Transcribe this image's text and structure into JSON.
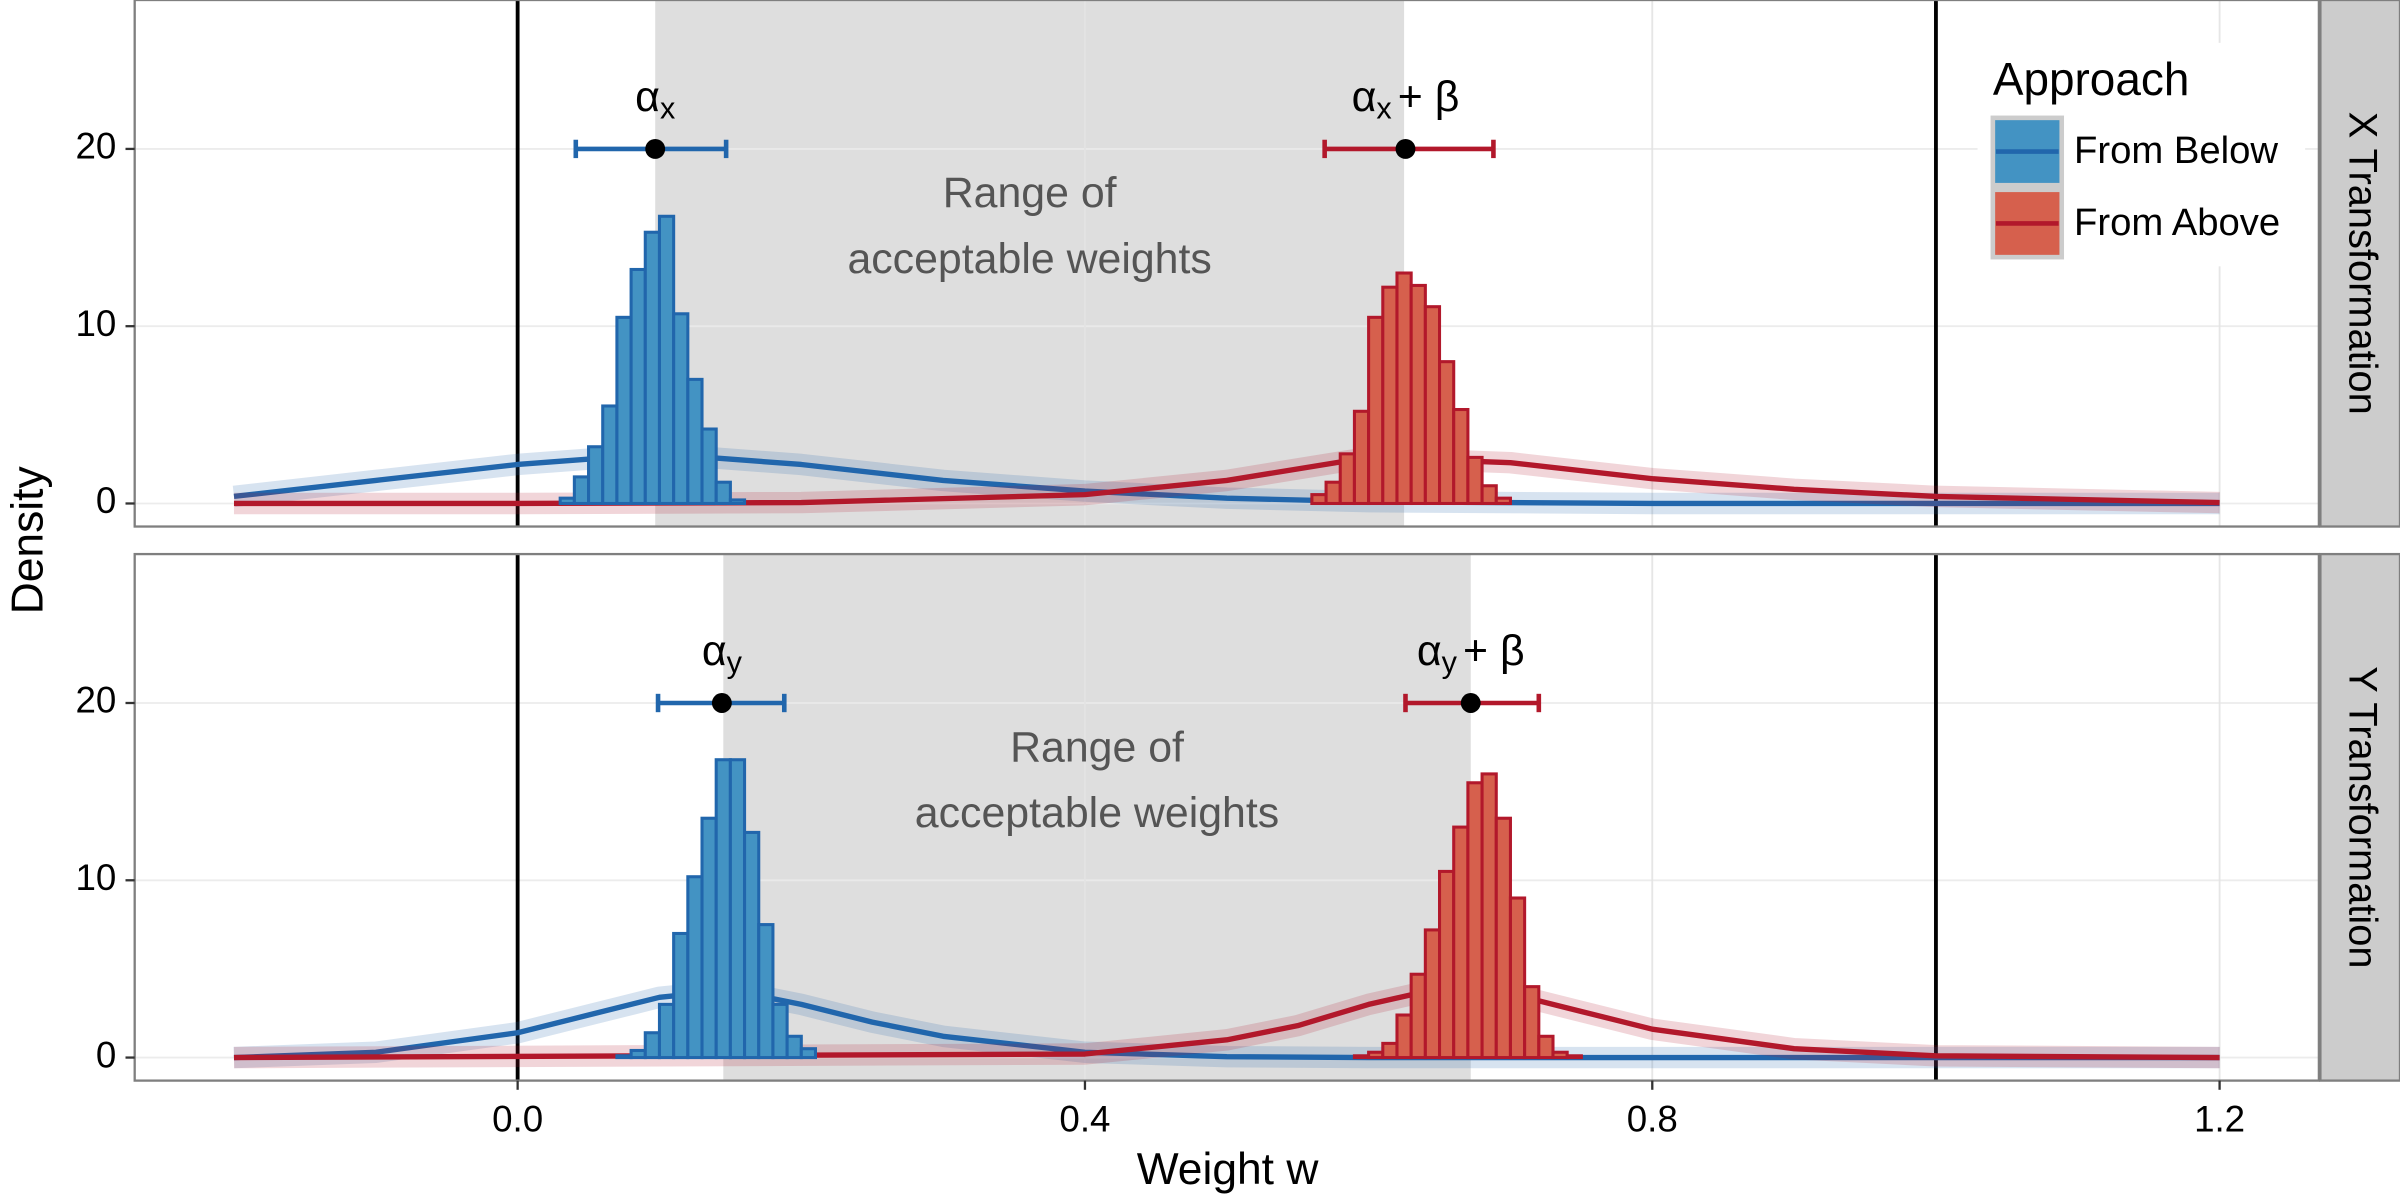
{
  "chart_data": {
    "type": "histogram",
    "x_label": "Weight w",
    "y_label": "Density",
    "legend_title": "Approach",
    "xlim": [
      -0.27,
      1.27
    ],
    "xticks": [
      {
        "value": 0,
        "label": "0.0"
      },
      0.4,
      0.8,
      1.2
    ],
    "ylim": [
      -1.3,
      28.4
    ],
    "yticks": [
      0,
      10,
      20
    ],
    "grid": true,
    "vlines": [
      0,
      1
    ],
    "series": [
      {
        "name": "From Below",
        "color": "#2166ac",
        "fill": "#4393c3"
      },
      {
        "name": "From Above",
        "color": "#b2182b",
        "fill": "#d6604d"
      }
    ],
    "panels": [
      {
        "facet": "X Transformation",
        "range": [
          0.097,
          0.625
        ],
        "range_label": [
          "Range of",
          "acceptable weights"
        ],
        "errorbar_y": 20,
        "errorbars": [
          {
            "estimate": 0.097,
            "lower": 0.041,
            "upper": 0.147,
            "symbol": "α",
            "subscript": "x"
          },
          {
            "estimate": 0.626,
            "lower": 0.569,
            "upper": 0.688,
            "symbol": "α",
            "subscript": "x",
            "suffix": "+ β"
          }
        ],
        "histograms": [
          {
            "bins": [
              0.03,
              0.04,
              0.05,
              0.06,
              0.07,
              0.08,
              0.09,
              0.1,
              0.11,
              0.12,
              0.13,
              0.14,
              0.15,
              0.16
            ],
            "counts": [
              0.3,
              1.5,
              3.2,
              5.5,
              10.5,
              13.2,
              15.3,
              16.2,
              10.7,
              7.0,
              4.2,
              1.2,
              0.2
            ]
          },
          {
            "bins": [
              0.56,
              0.57,
              0.58,
              0.59,
              0.6,
              0.61,
              0.62,
              0.63,
              0.64,
              0.65,
              0.66,
              0.67,
              0.68,
              0.69,
              0.7
            ],
            "counts": [
              0.5,
              1.2,
              2.8,
              5.2,
              10.5,
              12.2,
              13.0,
              12.3,
              11.1,
              8.0,
              5.3,
              2.6,
              1.0,
              0.3
            ]
          }
        ],
        "curves": [
          {
            "x": [
              -0.2,
              -0.1,
              0,
              0.1,
              0.2,
              0.3,
              0.4,
              0.5,
              0.6,
              0.8,
              1.2
            ],
            "y": [
              0.4,
              1.3,
              2.2,
              2.8,
              2.2,
              1.3,
              0.7,
              0.3,
              0.1,
              0,
              0
            ]
          },
          {
            "x": [
              -0.2,
              0,
              0.2,
              0.4,
              0.5,
              0.6,
              0.7,
              0.8,
              0.9,
              1.0,
              1.2
            ],
            "y": [
              0,
              0,
              0.05,
              0.5,
              1.3,
              2.6,
              2.3,
              1.4,
              0.8,
              0.4,
              0.05
            ]
          }
        ]
      },
      {
        "facet": "Y Transformation",
        "range": [
          0.145,
          0.672
        ],
        "range_label": [
          "Range of",
          "acceptable weights"
        ],
        "errorbar_y": 20,
        "errorbars": [
          {
            "estimate": 0.144,
            "lower": 0.099,
            "upper": 0.188,
            "symbol": "α",
            "subscript": "y"
          },
          {
            "estimate": 0.672,
            "lower": 0.626,
            "upper": 0.72,
            "symbol": "α",
            "subscript": "y",
            "suffix": "+ β"
          }
        ],
        "histograms": [
          {
            "bins": [
              0.07,
              0.08,
              0.09,
              0.1,
              0.11,
              0.12,
              0.13,
              0.14,
              0.15,
              0.16,
              0.17,
              0.18,
              0.19,
              0.2,
              0.21
            ],
            "counts": [
              0.1,
              0.4,
              1.4,
              3.0,
              7.0,
              10.2,
              13.5,
              16.8,
              16.8,
              12.7,
              7.5,
              3.0,
              1.2,
              0.5
            ]
          },
          {
            "bins": [
              0.59,
              0.6,
              0.61,
              0.62,
              0.63,
              0.64,
              0.65,
              0.66,
              0.67,
              0.68,
              0.69,
              0.7,
              0.71,
              0.72,
              0.73,
              0.74,
              0.75
            ],
            "counts": [
              0.1,
              0.3,
              0.8,
              2.4,
              4.7,
              7.2,
              10.5,
              13.0,
              15.5,
              16.0,
              13.5,
              9.0,
              4.0,
              1.2,
              0.3,
              0.1
            ]
          }
        ],
        "curves": [
          {
            "x": [
              -0.2,
              -0.1,
              0,
              0.05,
              0.1,
              0.15,
              0.2,
              0.25,
              0.3,
              0.4,
              0.5,
              0.6,
              1.2
            ],
            "y": [
              0,
              0.3,
              1.4,
              2.4,
              3.4,
              3.8,
              3.0,
              2.0,
              1.2,
              0.3,
              0.05,
              0,
              0
            ]
          },
          {
            "x": [
              -0.2,
              0.4,
              0.5,
              0.55,
              0.6,
              0.65,
              0.7,
              0.75,
              0.8,
              0.9,
              1.0,
              1.2
            ],
            "y": [
              0,
              0.2,
              1.0,
              1.8,
              3.0,
              3.9,
              3.6,
              2.6,
              1.6,
              0.5,
              0.1,
              0
            ]
          }
        ]
      }
    ]
  }
}
